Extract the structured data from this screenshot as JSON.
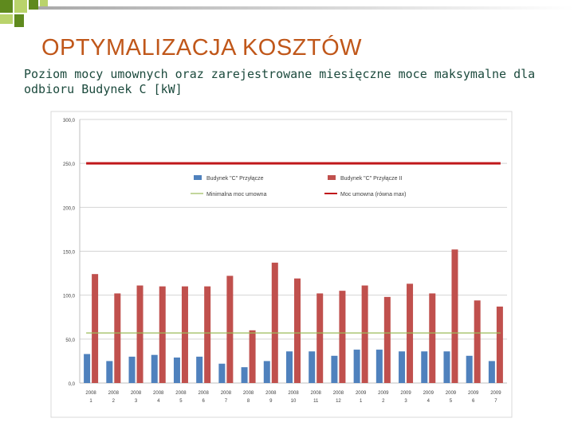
{
  "slide": {
    "title": "OPTYMALIZACJA KOSZTÓW",
    "subtitle": "Poziom mocy umownych oraz zarejestrowane miesięczne moce maksymalne dla odbioru Budynek C [kW]"
  },
  "colors": {
    "accent_green_dark": "#5f8a1e",
    "accent_green_light": "#b9d36b",
    "title": "#c0571a",
    "series_1": "#4f81bd",
    "series_2": "#c0504d",
    "minimal": "#9bbb59",
    "contracted": "#c0171a"
  },
  "chart_data": {
    "type": "bar",
    "title": "",
    "xlabel": "",
    "ylabel": "",
    "ylim": [
      0,
      300
    ],
    "yticks": [
      "0,0",
      "50,0",
      "100,0",
      "150,0",
      "200,0",
      "250,0",
      "300,0"
    ],
    "grid": true,
    "legend_position": "top-right",
    "categories": [
      {
        "year": "2008",
        "month": "1"
      },
      {
        "year": "2008",
        "month": "2"
      },
      {
        "year": "2008",
        "month": "3"
      },
      {
        "year": "2008",
        "month": "4"
      },
      {
        "year": "2008",
        "month": "5"
      },
      {
        "year": "2008",
        "month": "6"
      },
      {
        "year": "2008",
        "month": "7"
      },
      {
        "year": "2008",
        "month": "8"
      },
      {
        "year": "2008",
        "month": "9"
      },
      {
        "year": "2008",
        "month": "10"
      },
      {
        "year": "2008",
        "month": "11"
      },
      {
        "year": "2008",
        "month": "12"
      },
      {
        "year": "2009",
        "month": "1"
      },
      {
        "year": "2009",
        "month": "2"
      },
      {
        "year": "2009",
        "month": "3"
      },
      {
        "year": "2009",
        "month": "4"
      },
      {
        "year": "2009",
        "month": "5"
      },
      {
        "year": "2009",
        "month": "6"
      },
      {
        "year": "2009",
        "month": "7"
      }
    ],
    "series": [
      {
        "name": "Budynek \"C\" Przyłącze",
        "kind": "bar",
        "color": "#4f81bd",
        "values": [
          33,
          25,
          30,
          32,
          29,
          30,
          22,
          18,
          25,
          36,
          36,
          31,
          38,
          38,
          36,
          36,
          36,
          31,
          25
        ]
      },
      {
        "name": "Budynek \"C\" Przyłącze II",
        "kind": "bar",
        "color": "#c0504d",
        "values": [
          124,
          102,
          111,
          110,
          110,
          110,
          122,
          60,
          137,
          119,
          102,
          105,
          111,
          98,
          113,
          102,
          152,
          94,
          87
        ]
      },
      {
        "name": "Minimalna moc umowna",
        "kind": "line",
        "color": "#9bbb59",
        "value": 57
      },
      {
        "name": "Moc umowna (równa max)",
        "kind": "line",
        "color": "#c0171a",
        "value": 250
      }
    ]
  }
}
